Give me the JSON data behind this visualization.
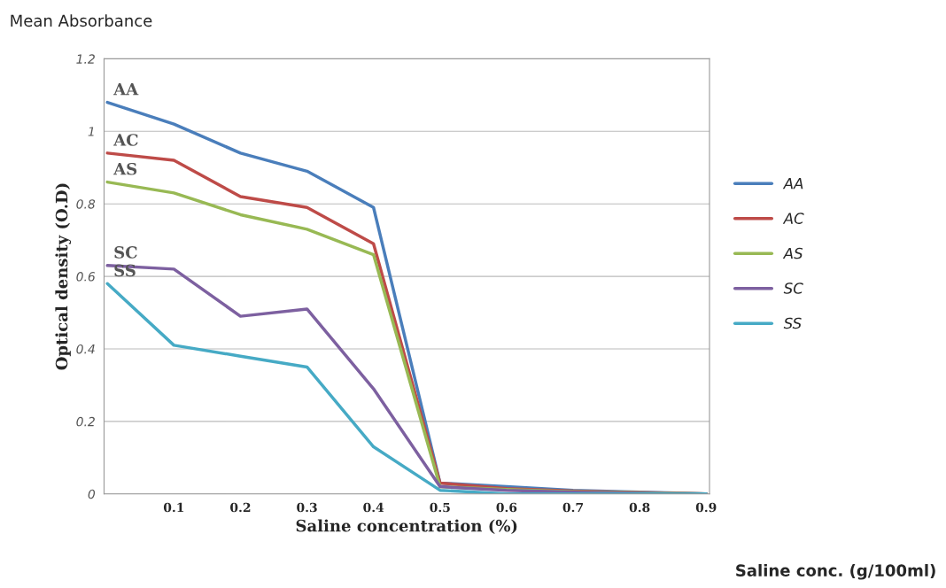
{
  "chart_data": {
    "type": "line",
    "xlabel": "Saline concentration (%)",
    "ylabel": "Optical density (O.D)",
    "categories": [
      null,
      "0.1",
      "0.2",
      "0.3",
      "0.4",
      "0.5",
      "0.6",
      "0.7",
      "0.8",
      "0.9"
    ],
    "series": [
      {
        "name": "AA",
        "color": "#4a7ebb",
        "values": [
          1.08,
          1.02,
          0.94,
          0.89,
          0.79,
          0.03,
          0.02,
          0.01,
          0.005,
          0
        ]
      },
      {
        "name": "AC",
        "color": "#be4b48",
        "values": [
          0.94,
          0.92,
          0.82,
          0.79,
          0.69,
          0.03,
          0.015,
          0.008,
          0.004,
          0
        ]
      },
      {
        "name": "AS",
        "color": "#98b954",
        "values": [
          0.86,
          0.83,
          0.77,
          0.73,
          0.66,
          0.02,
          0.012,
          0.006,
          0.003,
          0
        ]
      },
      {
        "name": "SC",
        "color": "#7d60a0",
        "values": [
          0.63,
          0.62,
          0.49,
          0.51,
          0.29,
          0.02,
          0.01,
          0.005,
          0.002,
          0
        ]
      },
      {
        "name": "SS",
        "color": "#46aac5",
        "values": [
          0.58,
          0.41,
          0.38,
          0.35,
          0.13,
          0.01,
          0.0,
          0.0,
          0.0,
          0
        ]
      }
    ],
    "ylim": [
      0,
      1.2
    ],
    "yticks": [
      0,
      0.2,
      0.4,
      0.6,
      0.8,
      1,
      1.2
    ],
    "grid": "y",
    "legend": "right",
    "marker": "none",
    "line_style": "solid",
    "annotations": [
      "Mean Absorbance",
      "Saline conc. (g/100ml)"
    ]
  }
}
